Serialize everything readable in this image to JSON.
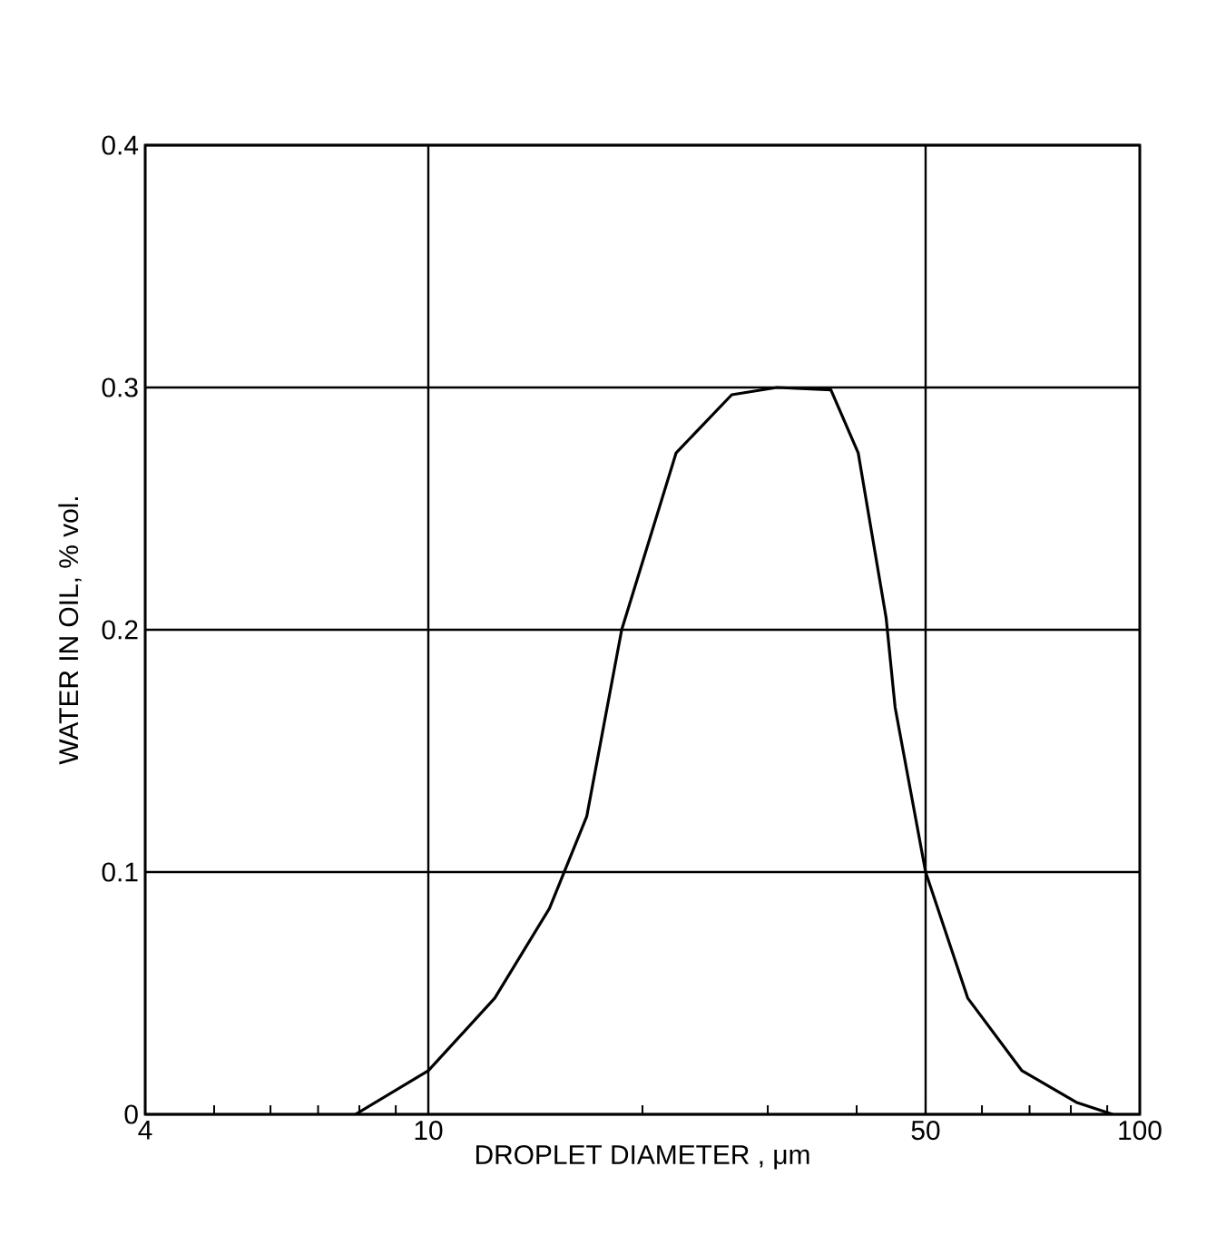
{
  "chart_data": {
    "type": "line",
    "xlabel": "DROPLET DIAMETER , μm",
    "ylabel": "WATER IN OIL, % vol.",
    "log": "x",
    "grid": true,
    "color": "#000000",
    "marker": "none",
    "line_style": "solid",
    "x": [
      7.9,
      10,
      12.4,
      14.8,
      16.7,
      18.7,
      22.3,
      26.7,
      30.9,
      36.8,
      40.2,
      44,
      45.3,
      50,
      57.3,
      68.3,
      81.4,
      91.6
    ],
    "values": [
      0,
      0.018,
      0.048,
      0.085,
      0.123,
      0.2,
      0.273,
      0.297,
      0.3,
      0.299,
      0.273,
      0.205,
      0.168,
      0.1,
      0.048,
      0.018,
      0.005,
      0
    ],
    "xlim": [
      4,
      100
    ],
    "ylim": [
      0,
      0.4
    ],
    "xticks": [
      4,
      {
        "value": 5,
        "label": null
      },
      {
        "value": 6,
        "label": null
      },
      {
        "value": 7,
        "label": null
      },
      {
        "value": 8,
        "label": null
      },
      {
        "value": 9,
        "label": null
      },
      10,
      {
        "value": 20,
        "label": null
      },
      {
        "value": 30,
        "label": null
      },
      {
        "value": 40,
        "label": null
      },
      50,
      {
        "value": 60,
        "label": null
      },
      {
        "value": 70,
        "label": null
      },
      {
        "value": 80,
        "label": null
      },
      {
        "value": 90,
        "label": null
      },
      100
    ],
    "yticks": [
      0,
      0.1,
      0.2,
      0.3,
      0.4
    ]
  }
}
